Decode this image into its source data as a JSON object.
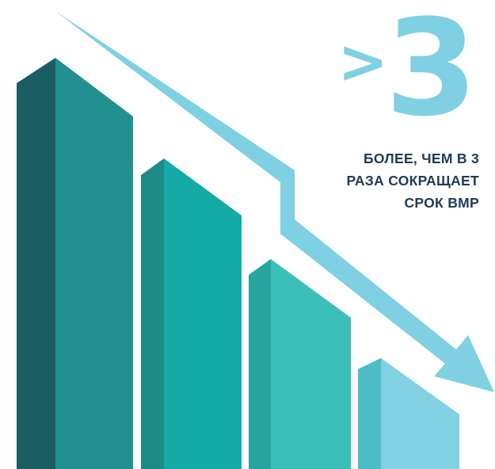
{
  "headline": {
    "symbol": ">",
    "value": "3"
  },
  "caption": {
    "line1": "БОЛЕЕ, ЧЕМ В 3",
    "line2": "РАЗА СОКРАЩАЕТ",
    "line3": "СРОК ВМР"
  },
  "colors": {
    "accent": "#7fd0e3",
    "caption_text": "#1f3b56",
    "bar1_front": "#21908f",
    "bar1_side": "#1a5e64",
    "bar2_front": "#14aaa5",
    "bar2_side": "#1e8a86",
    "bar3_front": "#3cbfb9",
    "bar3_side": "#27a59e",
    "bar4_front": "#82d1e3",
    "bar4_side": "#4bbdc4"
  }
}
